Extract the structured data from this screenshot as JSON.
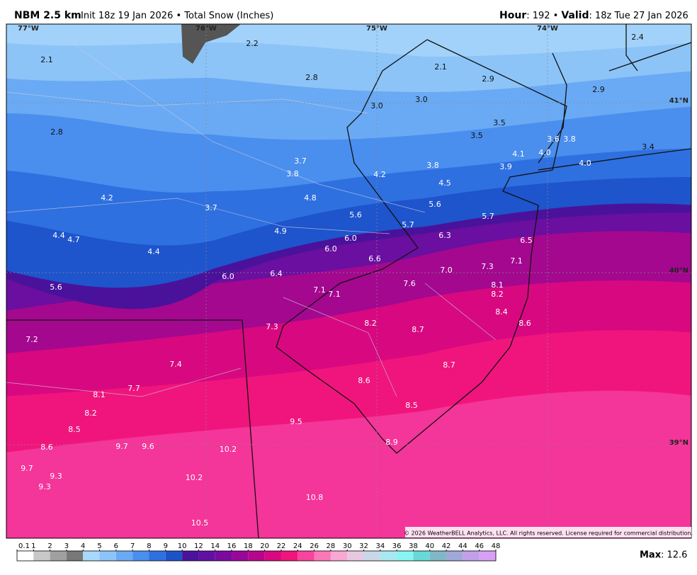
{
  "header": {
    "model": "NBM 2.5 km",
    "info": "Init 18z 19 Jan 2026 • Total Snow (Inches)",
    "hour_label": "Hour",
    "hour": ": 192 •",
    "valid_label": "Valid",
    "valid": ": 18z Tue 27 Jan 2026"
  },
  "map": {
    "lon_labels": [
      "77°W",
      "76°W",
      "75°W",
      "74°W"
    ],
    "lat_labels": [
      "41°N",
      "40°N",
      "39°N"
    ],
    "labels": [
      "2.1",
      "2.2",
      "2.8",
      "2.1",
      "2.9",
      "2.4",
      "2.9",
      "3.0",
      "3.0",
      "2.8",
      "3.5",
      "3.5",
      "3.6",
      "3.8",
      "4.1",
      "4.0",
      "3.4",
      "4.0",
      "3.7",
      "3.8",
      "4.2",
      "3.8",
      "3.9",
      "4.5",
      "4.2",
      "4.8",
      "3.7",
      "5.6",
      "5.6",
      "5.7",
      "5.7",
      "4.4",
      "4.7",
      "4.9",
      "6.0",
      "6.3",
      "6.5",
      "4.4",
      "6.0",
      "6.6",
      "7.1",
      "7.3",
      "7.0",
      "6.4",
      "6.0",
      "5.6",
      "7.6",
      "8.1",
      "7.1",
      "7.1",
      "8.2",
      "8.4",
      "8.6",
      "8.2",
      "7.3",
      "8.7",
      "7.2",
      "7.4",
      "8.7",
      "8.6",
      "7.7",
      "8.1",
      "8.2",
      "8.5",
      "9.5",
      "8.5",
      "8.9",
      "9.7",
      "9.6",
      "8.6",
      "10.2",
      "9.7",
      "9.3",
      "10.2",
      "9.3",
      "10.8",
      "10.5"
    ],
    "copyright": "© 2026 WeatherBELL Analytics, LLC. All rights reserved. License required for commercial distribution."
  },
  "colorbar": {
    "ticks": [
      0.1,
      1,
      2,
      3,
      4,
      5,
      6,
      7,
      8,
      9,
      10,
      12,
      14,
      16,
      18,
      20,
      22,
      24,
      26,
      28,
      30,
      32,
      34,
      36,
      38,
      40,
      42,
      44,
      46,
      48
    ],
    "colors": [
      "#ffffff",
      "#c8c8c8",
      "#a0a0a0",
      "#787878",
      "#a8d8fc",
      "#8cc4f8",
      "#6aaaf4",
      "#4a8eee",
      "#2f70e0",
      "#1e52c8",
      "#4a139c",
      "#620fa4",
      "#7a0aa0",
      "#980898",
      "#b8068c",
      "#d80880",
      "#f0147c",
      "#f8449c",
      "#fa78b8",
      "#f8a8d2",
      "#e8c8e0",
      "#c8d8e8",
      "#a8e8f0",
      "#88f4f4",
      "#68d8d8",
      "#80b8c8",
      "#a0a8d8",
      "#c0a0e8",
      "#d8a0f4"
    ],
    "max_label": "Max",
    "max": ": 12.6"
  }
}
